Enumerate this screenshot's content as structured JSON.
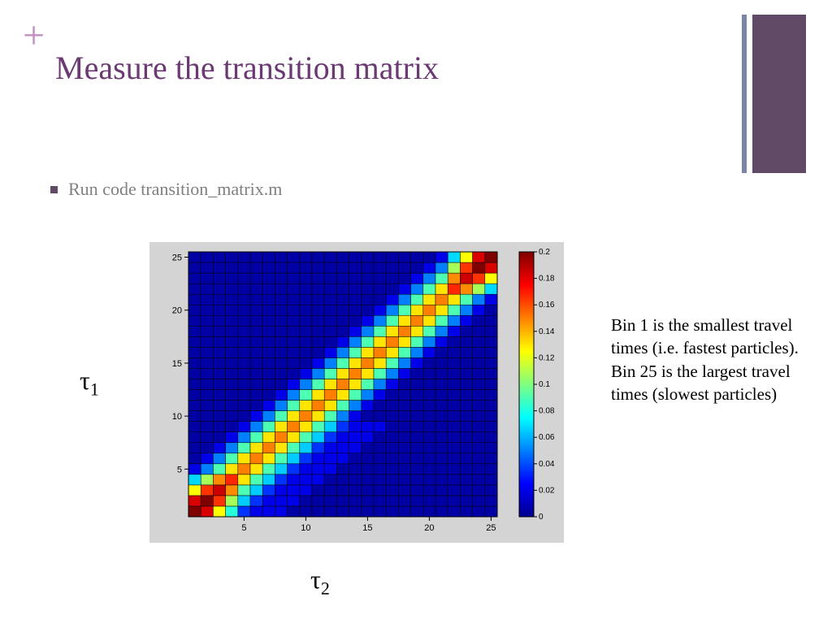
{
  "colors": {
    "plus": "#c28fc2",
    "title": "#6b3a73",
    "bar1": "#7a85a8",
    "bar2": "#604a65",
    "bullet": "#604a65",
    "chart_bg": "#d4d4d4"
  },
  "title": "Measure the transition matrix",
  "bullet_text": "Run code transition_matrix.m",
  "side_text": "Bin 1 is the smallest travel times (i.e. fastest particles). Bin 25 is the largest travel times (slowest particles)",
  "y_label": "τ",
  "y_sub": "1",
  "x_label": "τ",
  "x_sub": "2",
  "heatmap": {
    "type": "heatmap",
    "size": 25,
    "xlim": [
      1,
      25
    ],
    "ylim": [
      1,
      25
    ],
    "xticks": [
      5,
      10,
      15,
      20,
      25
    ],
    "yticks": [
      5,
      10,
      15,
      20,
      25
    ],
    "colorbar_ticks": [
      0,
      0.02,
      0.04,
      0.06,
      0.08,
      0.1,
      0.12,
      0.14,
      0.16,
      0.18,
      0.2
    ],
    "colorbar_range": [
      0,
      0.2
    ],
    "jet_stops": [
      {
        "p": 0.0,
        "c": "#00008f"
      },
      {
        "p": 0.125,
        "c": "#0000ff"
      },
      {
        "p": 0.375,
        "c": "#00ffff"
      },
      {
        "p": 0.625,
        "c": "#ffff00"
      },
      {
        "p": 0.875,
        "c": "#ff0000"
      },
      {
        "p": 1.0,
        "c": "#7f0000"
      }
    ],
    "plot_bg": "#ffffff"
  }
}
